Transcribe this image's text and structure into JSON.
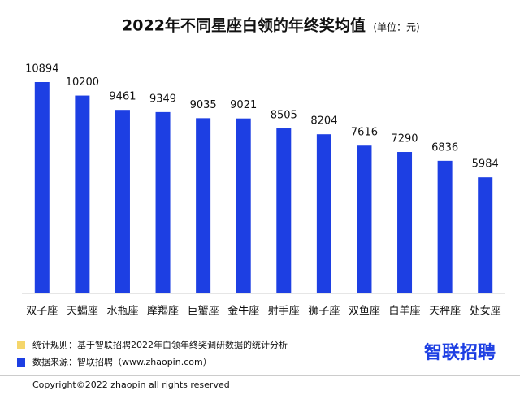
{
  "chart_data": {
    "type": "bar",
    "title": "2022年不同星座白领的年终奖均值",
    "subtitle": "(单位：元)",
    "categories": [
      "双子座",
      "天蝎座",
      "水瓶座",
      "摩羯座",
      "巨蟹座",
      "金牛座",
      "射手座",
      "狮子座",
      "双鱼座",
      "白羊座",
      "天秤座",
      "处女座"
    ],
    "values": [
      10894,
      10200,
      9461,
      9349,
      9035,
      9021,
      8505,
      8204,
      7616,
      7290,
      6836,
      5984
    ],
    "color": "#1d3fe3",
    "notes": [
      {
        "text": "统计规则：基于智联招聘2022年白领年终奖调研数据的统计分析",
        "color": "#f5d66b"
      },
      {
        "text": "数据来源：智联招聘（www.zhaopin.com）",
        "color": "#1d3fe3"
      }
    ],
    "logo": "智联招聘",
    "copyright": "Copyright©2022 zhaopin all rights reserved"
  }
}
